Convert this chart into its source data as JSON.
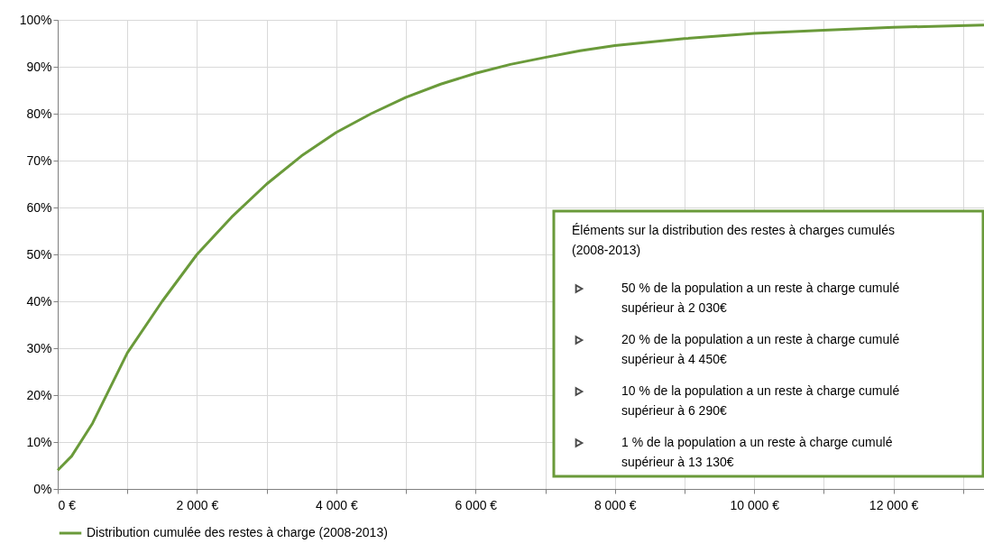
{
  "chart_data": {
    "type": "line",
    "x": [
      0,
      200,
      500,
      1000,
      1500,
      2000,
      2500,
      3000,
      3500,
      4000,
      4500,
      5000,
      5500,
      6000,
      6500,
      7000,
      7500,
      8000,
      9000,
      10000,
      11000,
      12000,
      13300
    ],
    "series": [
      {
        "name": "Distribution cumulée des restes à charge (2008-2013)",
        "color": "#6a9a3a",
        "values": [
          4,
          7,
          14,
          29,
          40,
          50,
          58,
          65,
          71,
          76,
          80,
          83.5,
          86.3,
          88.6,
          90.5,
          92,
          93.4,
          94.5,
          96,
          97.1,
          97.8,
          98.4,
          98.9
        ]
      }
    ],
    "xlim": [
      0,
      13300
    ],
    "xticks": [
      {
        "value": 0,
        "label": "0 €"
      },
      {
        "value": 1000,
        "label": null
      },
      {
        "value": 2000,
        "label": "2 000 €"
      },
      {
        "value": 3000,
        "label": null
      },
      {
        "value": 4000,
        "label": "4 000 €"
      },
      {
        "value": 5000,
        "label": null
      },
      {
        "value": 6000,
        "label": "6 000 €"
      },
      {
        "value": 7000,
        "label": null
      },
      {
        "value": 8000,
        "label": "8 000 €"
      },
      {
        "value": 9000,
        "label": null
      },
      {
        "value": 10000,
        "label": "10 000 €"
      },
      {
        "value": 11000,
        "label": null
      },
      {
        "value": 12000,
        "label": "12 000 €"
      },
      {
        "value": 13000,
        "label": null
      }
    ],
    "ylim": [
      0,
      100
    ],
    "yticks": [
      {
        "value": 0,
        "label": "0%"
      },
      {
        "value": 10,
        "label": "10%"
      },
      {
        "value": 20,
        "label": "20%"
      },
      {
        "value": 30,
        "label": "30%"
      },
      {
        "value": 40,
        "label": "40%"
      },
      {
        "value": 50,
        "label": "50%"
      },
      {
        "value": 60,
        "label": "60%"
      },
      {
        "value": 70,
        "label": "70%"
      },
      {
        "value": 80,
        "label": "80%"
      },
      {
        "value": 90,
        "label": "90%"
      },
      {
        "value": 100,
        "label": "100%"
      }
    ],
    "grid": true,
    "legend": "bottom",
    "line_style": "solid",
    "annotations": [
      "Éléments sur la distribution des restes à charges cumulés (2008-2013)",
      "50 % de la population a un reste à charge cumulé supérieur à 2 030€",
      "20 % de la population a un reste à charge cumulé supérieur à 4 450€",
      "10 % de la population a un reste à charge cumulé supérieur à 6 290€",
      "1 % de la population a un reste à charge cumulé supérieur à 13 130€"
    ]
  }
}
